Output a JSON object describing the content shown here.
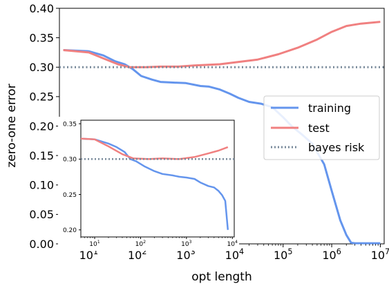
{
  "chart_data": [
    {
      "type": "line",
      "xlabel": "opt length",
      "ylabel": "zero-one error",
      "xscale": "log",
      "xlim": [
        2.5,
        12000000
      ],
      "ylim": [
        0.0,
        0.4
      ],
      "xticks": [
        10,
        100,
        1000,
        10000,
        100000,
        1000000,
        10000000
      ],
      "xtick_labels": [
        "10",
        "10",
        "10",
        "10",
        "10",
        "10",
        "10"
      ],
      "xtick_exponents": [
        "1",
        "2",
        "3",
        "4",
        "5",
        "6",
        "7"
      ],
      "yticks": [
        0.0,
        0.05,
        0.1,
        0.15,
        0.2,
        0.25,
        0.3,
        0.35,
        0.4
      ],
      "ytick_labels": [
        "0.00",
        "0.05",
        "0.10",
        "0.15",
        "0.20",
        "0.25",
        "0.30",
        "0.35",
        "0.40"
      ],
      "legend_position": "right",
      "series": [
        {
          "name": "training",
          "color": "#6495ed",
          "style": "solid",
          "points": [
            [
              3,
              0.329
            ],
            [
              10,
              0.327
            ],
            [
              20,
              0.32
            ],
            [
              35,
              0.31
            ],
            [
              55,
              0.305
            ],
            [
              80,
              0.297
            ],
            [
              120,
              0.285
            ],
            [
              200,
              0.279
            ],
            [
              300,
              0.275
            ],
            [
              500,
              0.274
            ],
            [
              1000,
              0.273
            ],
            [
              2000,
              0.268
            ],
            [
              3000,
              0.267
            ],
            [
              5000,
              0.262
            ],
            [
              8000,
              0.255
            ],
            [
              12000,
              0.248
            ],
            [
              20000,
              0.241
            ],
            [
              35000,
              0.238
            ],
            [
              60000,
              0.232
            ],
            [
              100000,
              0.215
            ],
            [
              150000,
              0.2
            ],
            [
              250000,
              0.185
            ],
            [
              400000,
              0.17
            ],
            [
              700000,
              0.135
            ],
            [
              1000000,
              0.09
            ],
            [
              1500000,
              0.04
            ],
            [
              2000000,
              0.015
            ],
            [
              2500000,
              0.002
            ],
            [
              3000000,
              0.001
            ],
            [
              10000000,
              0.001
            ]
          ]
        },
        {
          "name": "test",
          "color": "#f08080",
          "style": "solid",
          "points": [
            [
              3,
              0.329
            ],
            [
              10,
              0.325
            ],
            [
              20,
              0.315
            ],
            [
              40,
              0.305
            ],
            [
              70,
              0.3
            ],
            [
              150,
              0.3
            ],
            [
              300,
              0.301
            ],
            [
              700,
              0.301
            ],
            [
              1500,
              0.303
            ],
            [
              5000,
              0.305
            ],
            [
              10000,
              0.308
            ],
            [
              30000,
              0.313
            ],
            [
              80000,
              0.322
            ],
            [
              200000,
              0.333
            ],
            [
              500000,
              0.347
            ],
            [
              1000000,
              0.36
            ],
            [
              2000000,
              0.37
            ],
            [
              4000000,
              0.374
            ],
            [
              10000000,
              0.377
            ]
          ]
        },
        {
          "name": "bayes risk",
          "color": "#778899",
          "style": "dotted",
          "points": [
            [
              2.5,
              0.3
            ],
            [
              12000000,
              0.3
            ]
          ]
        }
      ]
    },
    {
      "type": "line",
      "title": "",
      "xscale": "log",
      "xlim": [
        5,
        11000
      ],
      "ylim": [
        0.19,
        0.355
      ],
      "xticks": [
        10,
        100,
        1000,
        10000
      ],
      "xtick_labels": [
        "10",
        "10",
        "10",
        "10"
      ],
      "xtick_exponents": [
        "1",
        "2",
        "3",
        "4"
      ],
      "yticks": [
        0.2,
        0.25,
        0.3,
        0.35
      ],
      "ytick_labels": [
        "0.20",
        "0.25",
        "0.30",
        "0.35"
      ],
      "series": [
        {
          "name": "training",
          "color": "#6495ed",
          "style": "solid",
          "points": [
            [
              5,
              0.329
            ],
            [
              10,
              0.328
            ],
            [
              20,
              0.322
            ],
            [
              30,
              0.317
            ],
            [
              45,
              0.31
            ],
            [
              60,
              0.3
            ],
            [
              80,
              0.297
            ],
            [
              120,
              0.29
            ],
            [
              200,
              0.283
            ],
            [
              300,
              0.279
            ],
            [
              500,
              0.277
            ],
            [
              700,
              0.275
            ],
            [
              1000,
              0.274
            ],
            [
              1500,
              0.272
            ],
            [
              2000,
              0.267
            ],
            [
              3000,
              0.262
            ],
            [
              4000,
              0.26
            ],
            [
              5000,
              0.255
            ],
            [
              6000,
              0.249
            ],
            [
              7000,
              0.241
            ],
            [
              8000,
              0.2
            ]
          ]
        },
        {
          "name": "test",
          "color": "#f08080",
          "style": "solid",
          "points": [
            [
              5,
              0.329
            ],
            [
              10,
              0.328
            ],
            [
              20,
              0.318
            ],
            [
              40,
              0.307
            ],
            [
              70,
              0.301
            ],
            [
              150,
              0.3
            ],
            [
              300,
              0.301
            ],
            [
              700,
              0.3
            ],
            [
              1500,
              0.303
            ],
            [
              3000,
              0.308
            ],
            [
              5000,
              0.312
            ],
            [
              8000,
              0.317
            ]
          ]
        },
        {
          "name": "bayes risk",
          "color": "#778899",
          "style": "dotted",
          "points": [
            [
              5,
              0.3
            ],
            [
              11000,
              0.3
            ]
          ]
        }
      ]
    }
  ]
}
